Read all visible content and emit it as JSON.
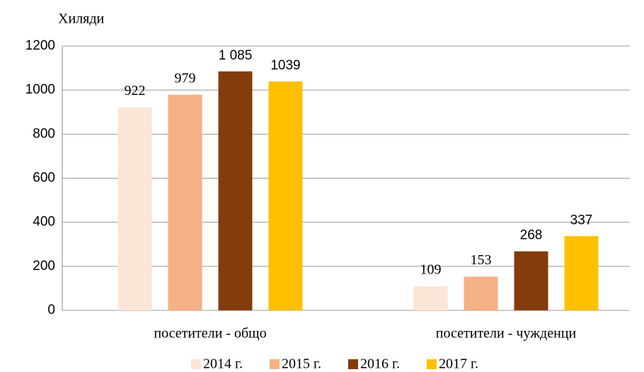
{
  "chart_data": {
    "type": "bar",
    "y_label": "Хиляди",
    "categories": [
      "посетители - общо",
      "посетители - чужденци"
    ],
    "series": [
      {
        "name": "2014 г.",
        "color": "#fbe5d6",
        "values": [
          922,
          109
        ]
      },
      {
        "name": "2015 г.",
        "color": "#f4b183",
        "values": [
          979,
          153
        ]
      },
      {
        "name": "2016 г.",
        "color": "#843c0c",
        "values": [
          1085,
          268
        ],
        "value_labels": [
          "1 085",
          "268"
        ]
      },
      {
        "name": "2017 г.",
        "color": "#ffc000",
        "values": [
          1039,
          337
        ]
      }
    ],
    "ylim": [
      0,
      1200
    ],
    "yticks": [
      0,
      200,
      400,
      600,
      800,
      1000,
      1200
    ],
    "grid": true,
    "legend": "bottom"
  }
}
